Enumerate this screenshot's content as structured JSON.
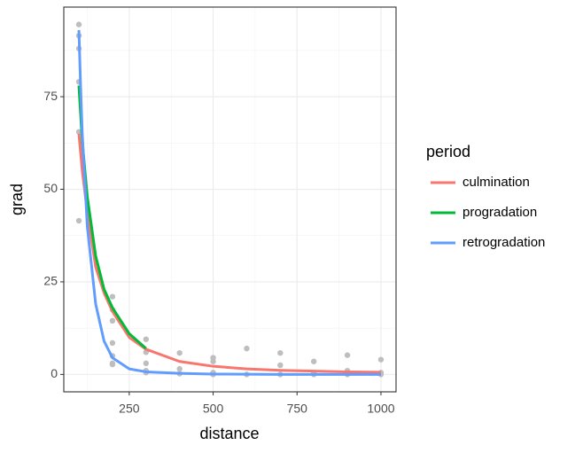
{
  "chart_data": {
    "type": "line",
    "x_label": "distance",
    "y_label": "grad",
    "legend_title": "period",
    "legend_position": "right",
    "xlim": [
      55,
      1045
    ],
    "ylim": [
      -4.7,
      99.2
    ],
    "xticks": [
      250,
      500,
      750,
      1000
    ],
    "yticks": [
      0,
      25,
      50,
      75
    ],
    "minor_xticks": [
      125,
      375,
      625,
      875
    ],
    "minor_yticks": [
      12.5,
      37.5,
      62.5,
      87.5
    ],
    "grid": true,
    "points": {
      "color": "#bebebe",
      "x": [
        100,
        100,
        100,
        100,
        100,
        100,
        200,
        200,
        200,
        200,
        200,
        200,
        200,
        300,
        300,
        300,
        300,
        300,
        400,
        400,
        400,
        500,
        500,
        500,
        500,
        600,
        600,
        700,
        700,
        700,
        800,
        800,
        800,
        900,
        900,
        900,
        1000,
        1000,
        1000
      ],
      "values": [
        94.5,
        91.5,
        88,
        79,
        65.5,
        41.5,
        21,
        17.5,
        14.5,
        8.5,
        5,
        2.7,
        3,
        9.5,
        6,
        3,
        1,
        0.5,
        5.8,
        1.5,
        0.2,
        4.5,
        3.5,
        0.5,
        0,
        7,
        0,
        5.8,
        2.5,
        0,
        3.5,
        0.5,
        0,
        5.2,
        1,
        0,
        4,
        0.5,
        0
      ]
    },
    "series": [
      {
        "name": "culmination",
        "color": "#F8766D",
        "x": [
          100,
          110,
          125,
          150,
          175,
          200,
          250,
          300,
          400,
          500,
          600,
          700,
          800,
          900,
          1000
        ],
        "values": [
          65,
          55,
          44,
          29,
          22,
          17,
          10,
          6.8,
          3.5,
          2.2,
          1.5,
          1.1,
          0.9,
          0.7,
          0.6
        ]
      },
      {
        "name": "progradation",
        "color": "#00BA38",
        "x": [
          100,
          110,
          125,
          150,
          175,
          200,
          250,
          300
        ],
        "values": [
          78,
          63,
          48,
          32,
          23,
          18,
          11,
          7
        ]
      },
      {
        "name": "retrogradation",
        "color": "#619CFF",
        "x": [
          100,
          105,
          110,
          125,
          150,
          175,
          200,
          250,
          300,
          400,
          500,
          700,
          1000
        ],
        "values": [
          93,
          78,
          65,
          40,
          19,
          9,
          4.5,
          1.5,
          0.7,
          0.3,
          0.1,
          0,
          0
        ]
      }
    ]
  }
}
